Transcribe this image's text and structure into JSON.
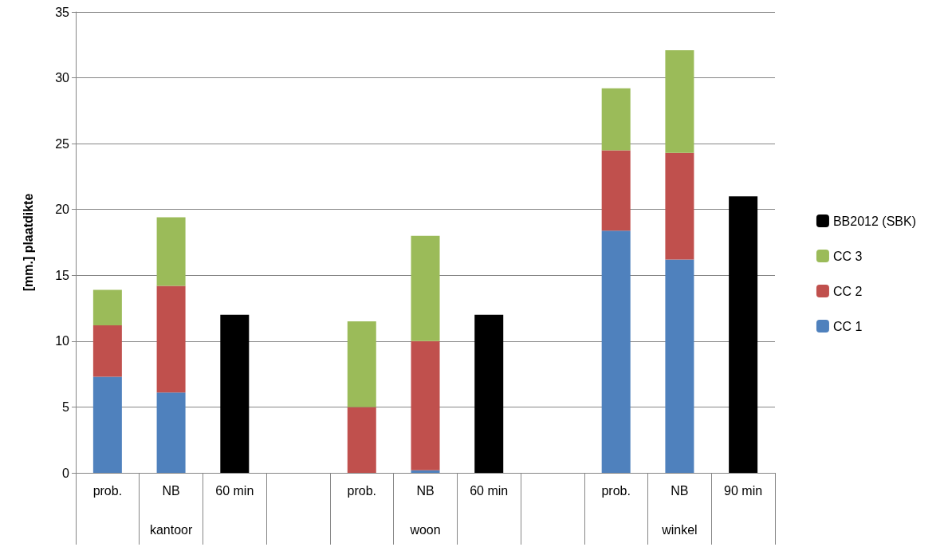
{
  "chart_data": {
    "type": "bar",
    "stacked": true,
    "ylabel": "[mm.] plaatdikte",
    "categories": [
      "prob.",
      "NB",
      "60 min",
      null,
      "prob.",
      "NB",
      "60 min",
      null,
      "prob.",
      "NB",
      "90 min"
    ],
    "series": [
      {
        "name": "CC 1",
        "color": "#4f81bd",
        "values": [
          7.3,
          6.1,
          null,
          null,
          0,
          0.2,
          null,
          null,
          18.4,
          16.2,
          null
        ]
      },
      {
        "name": "CC 2",
        "color": "#c0504d",
        "values": [
          3.9,
          8.1,
          null,
          null,
          5.0,
          9.8,
          null,
          null,
          6.1,
          8.1,
          null
        ]
      },
      {
        "name": "CC 3",
        "color": "#9bbb59",
        "values": [
          2.7,
          5.2,
          null,
          null,
          6.5,
          8.0,
          null,
          null,
          4.7,
          7.8,
          null
        ]
      },
      {
        "name": "BB2012 (SBK)",
        "color": "#000000",
        "values": [
          null,
          null,
          12,
          null,
          null,
          null,
          12,
          null,
          null,
          null,
          21
        ]
      }
    ],
    "ylim": [
      0,
      35
    ],
    "yticks": [
      0,
      5,
      10,
      15,
      20,
      25,
      30,
      35
    ],
    "grid": "y",
    "legend": "right",
    "annotations": [
      "kantoor",
      "woon",
      "winkel"
    ]
  }
}
